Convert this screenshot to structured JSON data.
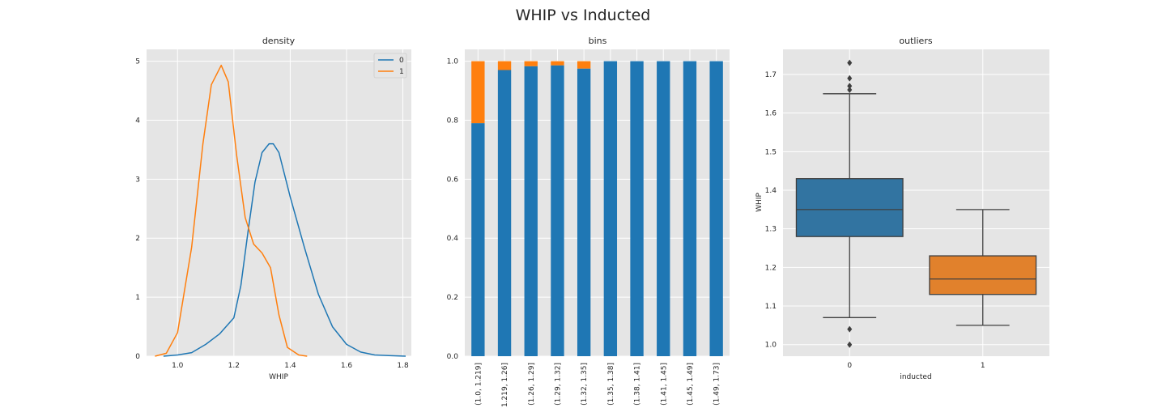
{
  "title": "WHIP vs Inducted",
  "colors": {
    "class0": "#1f77b4",
    "class1": "#ff7f0e",
    "box0": "#3274a1",
    "box1": "#e1812c",
    "panel_bg": "#e5e5e5",
    "grid": "#ffffff"
  },
  "chart_data": [
    {
      "type": "line",
      "title": "density",
      "xlabel": "WHIP",
      "ylabel": "",
      "xlim": [
        0.89,
        1.83
      ],
      "ylim": [
        0,
        5.2
      ],
      "xticks": [
        "1.0",
        "1.2",
        "1.4",
        "1.6",
        "1.8"
      ],
      "yticks": [
        "0",
        "1",
        "2",
        "3",
        "4",
        "5"
      ],
      "grid": true,
      "legend_position": "top-right",
      "series": [
        {
          "name": "0",
          "color": "#1f77b4",
          "x": [
            0.95,
            1.0,
            1.05,
            1.1,
            1.15,
            1.2,
            1.225,
            1.25,
            1.275,
            1.3,
            1.325,
            1.34,
            1.36,
            1.4,
            1.45,
            1.5,
            1.55,
            1.6,
            1.65,
            1.7,
            1.75,
            1.81
          ],
          "y": [
            0.0,
            0.02,
            0.06,
            0.2,
            0.38,
            0.65,
            1.2,
            2.1,
            2.95,
            3.45,
            3.6,
            3.6,
            3.45,
            2.7,
            1.85,
            1.05,
            0.5,
            0.2,
            0.07,
            0.02,
            0.01,
            0.0
          ]
        },
        {
          "name": "1",
          "color": "#ff7f0e",
          "x": [
            0.92,
            0.96,
            1.0,
            1.05,
            1.09,
            1.12,
            1.155,
            1.18,
            1.21,
            1.24,
            1.27,
            1.3,
            1.33,
            1.36,
            1.39,
            1.43,
            1.46
          ],
          "y": [
            0.0,
            0.05,
            0.4,
            1.85,
            3.6,
            4.6,
            4.93,
            4.65,
            3.4,
            2.35,
            1.9,
            1.75,
            1.5,
            0.7,
            0.15,
            0.02,
            0.0
          ]
        }
      ]
    },
    {
      "type": "bar",
      "stacked": true,
      "title": "bins",
      "xlabel": "",
      "ylabel": "",
      "ylim": [
        0,
        1.04
      ],
      "yticks": [
        "0.0",
        "0.2",
        "0.4",
        "0.6",
        "0.8",
        "1.0"
      ],
      "grid": true,
      "categories": [
        "(1.0, 1.219]",
        "(1.219, 1.26]",
        "(1.26, 1.29]",
        "(1.29, 1.32]",
        "(1.32, 1.35]",
        "(1.35, 1.38]",
        "(1.38, 1.41]",
        "(1.41, 1.45]",
        "(1.45, 1.49]",
        "(1.49, 1.73]"
      ],
      "series": [
        {
          "name": "0",
          "color": "#1f77b4",
          "values": [
            0.79,
            0.97,
            0.983,
            0.986,
            0.975,
            1.0,
            1.0,
            1.0,
            1.0,
            1.0
          ]
        },
        {
          "name": "1",
          "color": "#ff7f0e",
          "values": [
            0.21,
            0.03,
            0.017,
            0.014,
            0.025,
            0.0,
            0.0,
            0.0,
            0.0,
            0.0
          ]
        }
      ]
    },
    {
      "type": "box",
      "title": "outliers",
      "xlabel": "inducted",
      "ylabel": "WHIP",
      "ylim": [
        0.97,
        1.765
      ],
      "yticks": [
        "1.0",
        "1.1",
        "1.2",
        "1.3",
        "1.4",
        "1.5",
        "1.6",
        "1.7"
      ],
      "grid": true,
      "categories": [
        "0",
        "1"
      ],
      "boxes": [
        {
          "name": "0",
          "color": "#3274a1",
          "whisker_low": 1.07,
          "q1": 1.28,
          "median": 1.35,
          "q3": 1.43,
          "whisker_high": 1.65,
          "outliers": [
            1.73,
            1.69,
            1.67,
            1.66,
            1.04,
            1.0
          ]
        },
        {
          "name": "1",
          "color": "#e1812c",
          "whisker_low": 1.05,
          "q1": 1.13,
          "median": 1.17,
          "q3": 1.23,
          "whisker_high": 1.35,
          "outliers": []
        }
      ]
    }
  ]
}
